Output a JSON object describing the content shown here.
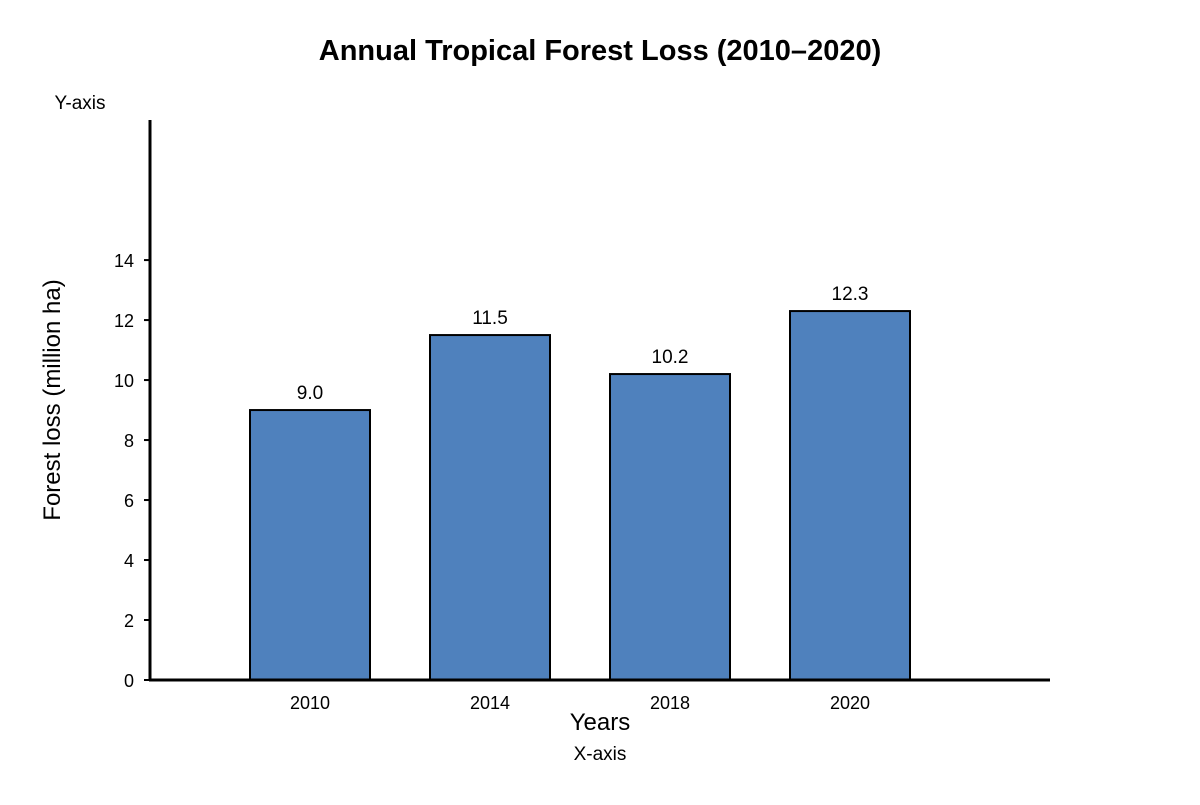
{
  "chart_data": {
    "type": "bar",
    "title": "Annual Tropical Forest Loss (2010–2020)",
    "xlabel": "Years",
    "ylabel": "Forest loss (million ha)",
    "x_caption": "X-axis",
    "y_caption": "Y-axis",
    "categories": [
      "2010",
      "2014",
      "2018",
      "2020"
    ],
    "values": [
      9.0,
      11.5,
      10.2,
      12.3
    ],
    "value_labels": [
      "9.0",
      "11.5",
      "10.2",
      "12.3"
    ],
    "yticks": [
      0,
      2,
      4,
      6,
      8,
      10,
      12,
      14
    ],
    "ylim": [
      0,
      18.67
    ],
    "grid": false,
    "legend": "none",
    "colors": {
      "bar_fill": "#4f81bd",
      "bar_stroke": "#000000",
      "axis": "#000000"
    }
  }
}
